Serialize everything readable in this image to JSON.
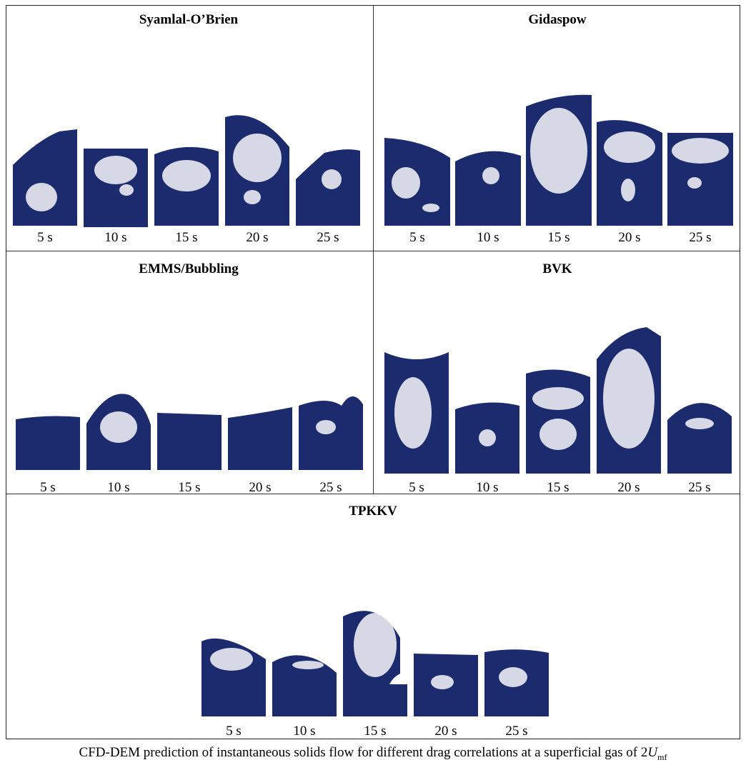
{
  "panels": [
    {
      "title": "Syamlal-O’Brien",
      "labels": [
        "5 s",
        "10 s",
        "15 s",
        "20 s",
        "25 s"
      ]
    },
    {
      "title": "Gidaspow",
      "labels": [
        "5 s",
        "10 s",
        "15 s",
        "20 s",
        "25 s"
      ]
    },
    {
      "title": "EMMS/Bubbling",
      "labels": [
        "5 s",
        "10 s",
        "15 s",
        "20 s",
        "25 s"
      ]
    },
    {
      "title": "BVK",
      "labels": [
        "5 s",
        "10 s",
        "15 s",
        "20 s",
        "25 s"
      ]
    },
    {
      "title": "TPKKV",
      "labels": [
        "5 s",
        "10 s",
        "15 s",
        "20 s",
        "25 s"
      ]
    }
  ],
  "caption": {
    "text": "CFD-DEM prediction of instantaneous solids flow for different drag correlations at a superficial gas of 2",
    "symbol": "U",
    "subscript": "mf"
  },
  "colors": {
    "particles": "#1c2a6e",
    "void": "#ffffff"
  }
}
